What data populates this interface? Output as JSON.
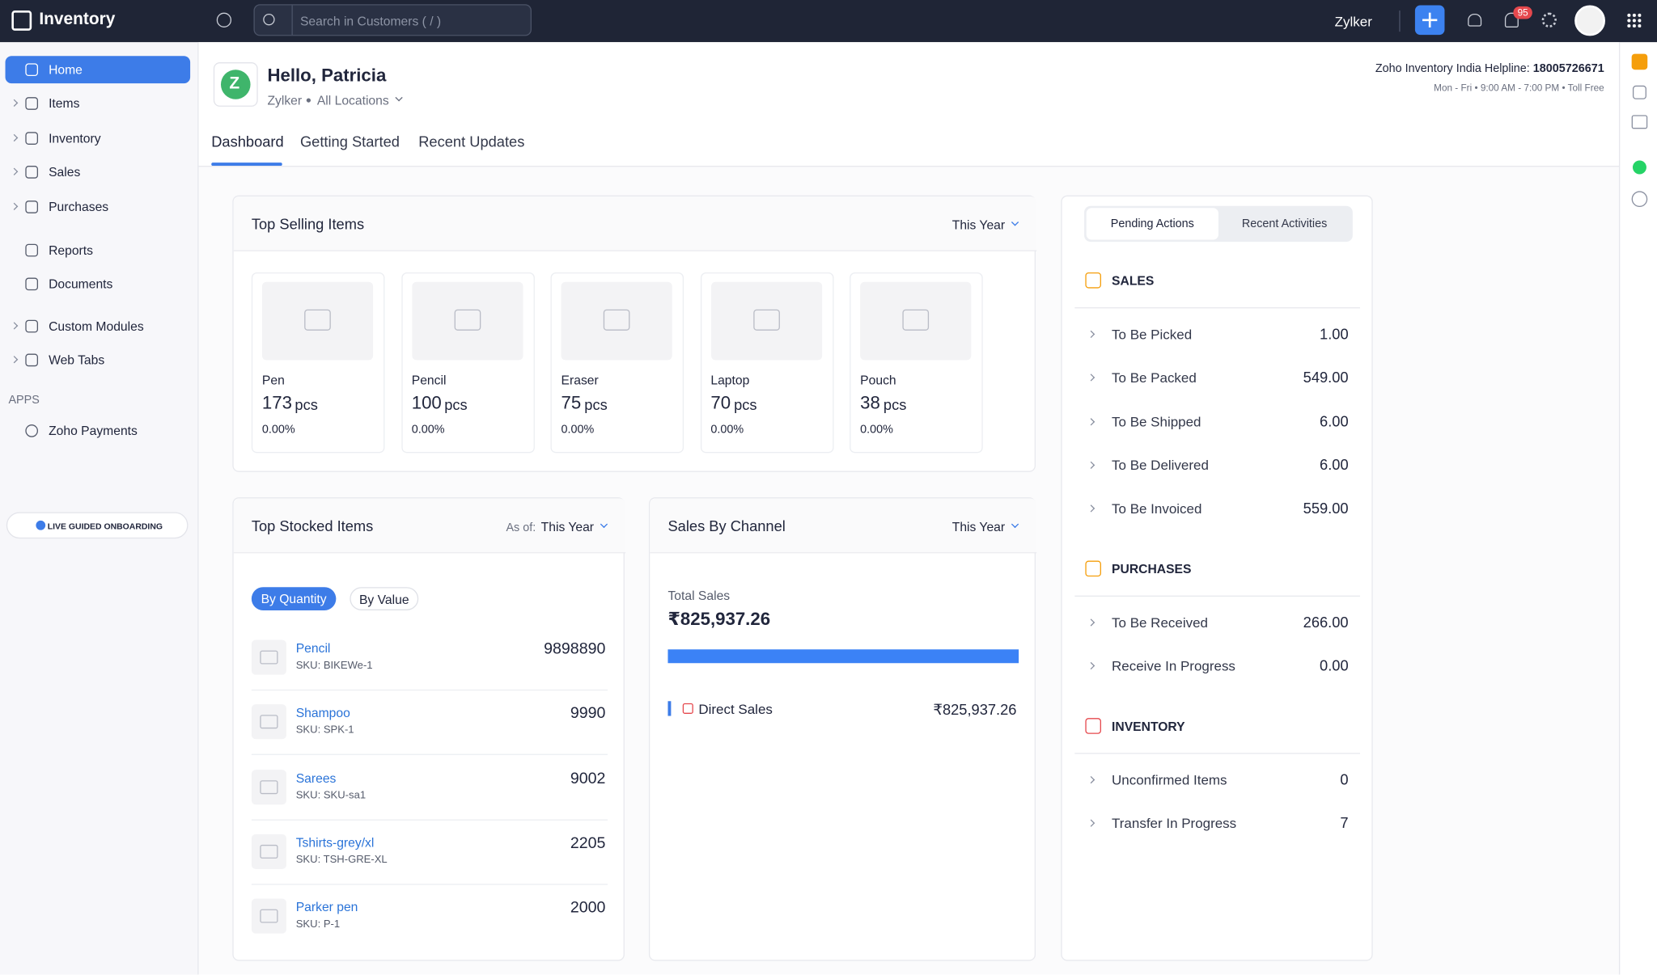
{
  "topbar": {
    "app_name": "Inventory",
    "search_placeholder": "Search in Customers ( / )",
    "org": "Zylker",
    "notification_count": "95"
  },
  "sidebar": {
    "items": [
      "Home",
      "Items",
      "Inventory",
      "Sales",
      "Purchases",
      "Reports",
      "Documents",
      "Custom Modules",
      "Web Tabs"
    ],
    "apps_heading": "APPS",
    "apps": [
      "Zoho Payments"
    ],
    "onboarding": "LIVE GUIDED ONBOARDING"
  },
  "header": {
    "avatar_letter": "Z",
    "greeting": "Hello, Patricia",
    "org": "Zylker",
    "location": "All Locations",
    "helpline_label": "Zoho Inventory India Helpline:",
    "helpline_number": "18005726671",
    "hours": "Mon - Fri • 9:00 AM - 7:00 PM • Toll Free"
  },
  "tabs": [
    "Dashboard",
    "Getting Started",
    "Recent Updates"
  ],
  "top_selling": {
    "title": "Top Selling Items",
    "period": "This Year",
    "items": [
      {
        "name": "Pen",
        "qty": "173",
        "unit": "pcs",
        "pct": "0.00%"
      },
      {
        "name": "Pencil",
        "qty": "100",
        "unit": "pcs",
        "pct": "0.00%"
      },
      {
        "name": "Eraser",
        "qty": "75",
        "unit": "pcs",
        "pct": "0.00%"
      },
      {
        "name": "Laptop",
        "qty": "70",
        "unit": "pcs",
        "pct": "0.00%"
      },
      {
        "name": "Pouch",
        "qty": "38",
        "unit": "pcs",
        "pct": "0.00%"
      }
    ]
  },
  "top_stocked": {
    "title": "Top Stocked Items",
    "as_of_label": "As of:",
    "period": "This Year",
    "toggles": [
      "By Quantity",
      "By Value"
    ],
    "items": [
      {
        "name": "Pencil",
        "sku": "SKU: BIKEWe-1",
        "qty": "9898890"
      },
      {
        "name": "Shampoo",
        "sku": "SKU: SPK-1",
        "qty": "9990"
      },
      {
        "name": "Sarees",
        "sku": "SKU: SKU-sa1",
        "qty": "9002"
      },
      {
        "name": "Tshirts-grey/xl",
        "sku": "SKU: TSH-GRE-XL",
        "qty": "2205"
      },
      {
        "name": "Parker pen",
        "sku": "SKU: P-1",
        "qty": "2000"
      }
    ]
  },
  "sales_by_channel": {
    "title": "Sales By Channel",
    "period": "This Year",
    "total_label": "Total Sales",
    "total": "₹825,937.26",
    "channels": [
      {
        "name": "Direct Sales",
        "amount": "₹825,937.26"
      }
    ]
  },
  "pending": {
    "tabs": [
      "Pending Actions",
      "Recent Activities"
    ],
    "sections": [
      {
        "title": "SALES",
        "rows": [
          {
            "label": "To Be Picked",
            "value": "1.00"
          },
          {
            "label": "To Be Packed",
            "value": "549.00"
          },
          {
            "label": "To Be Shipped",
            "value": "6.00"
          },
          {
            "label": "To Be Delivered",
            "value": "6.00"
          },
          {
            "label": "To Be Invoiced",
            "value": "559.00"
          }
        ]
      },
      {
        "title": "PURCHASES",
        "rows": [
          {
            "label": "To Be Received",
            "value": "266.00"
          },
          {
            "label": "Receive In Progress",
            "value": "0.00"
          }
        ]
      },
      {
        "title": "INVENTORY",
        "rows": [
          {
            "label": "Unconfirmed Items",
            "value": "0"
          },
          {
            "label": "Transfer In Progress",
            "value": "7"
          }
        ]
      }
    ]
  }
}
